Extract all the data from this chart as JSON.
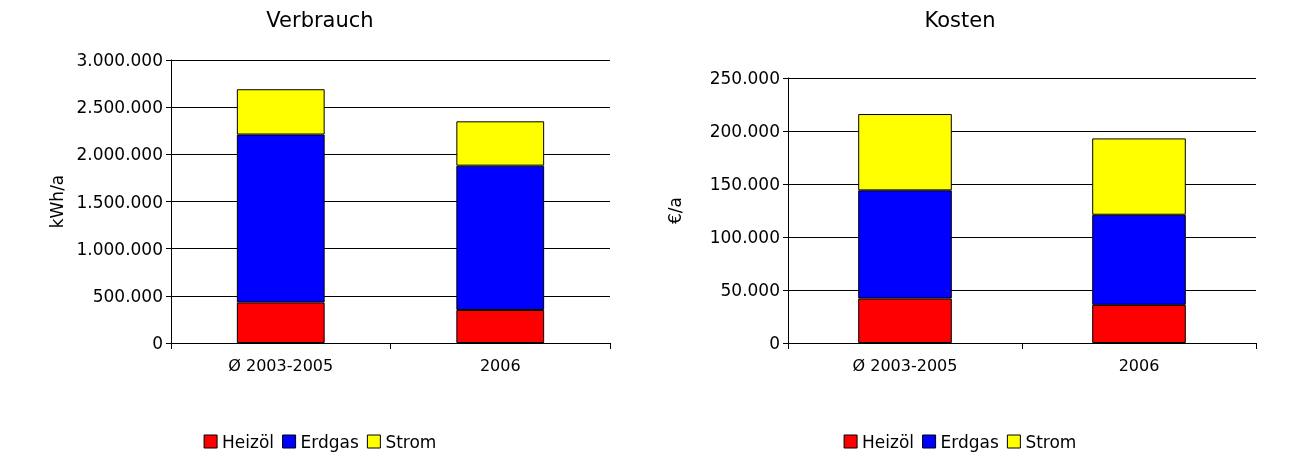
{
  "chart_data": [
    {
      "type": "bar",
      "title": "Verbrauch",
      "ylabel": "kWh/a",
      "categories": [
        "Ø 2003-2005",
        "2006"
      ],
      "stacked": true,
      "series": [
        {
          "name": "Heizöl",
          "color": "#ff0000",
          "values": [
            430000,
            350000
          ]
        },
        {
          "name": "Erdgas",
          "color": "#0000ff",
          "values": [
            1780000,
            1530000
          ]
        },
        {
          "name": "Strom",
          "color": "#ffff00",
          "values": [
            480000,
            470000
          ]
        }
      ],
      "ylim": [
        0,
        3000000
      ],
      "yticks": [
        {
          "value": 0,
          "label": "0"
        },
        {
          "value": 500000,
          "label": "500.000"
        },
        {
          "value": 1000000,
          "label": "1.000.000"
        },
        {
          "value": 1500000,
          "label": "1.500.000"
        },
        {
          "value": 2000000,
          "label": "2.000.000"
        },
        {
          "value": 2500000,
          "label": "2.500.000"
        },
        {
          "value": 3000000,
          "label": "3.000.000"
        }
      ],
      "grid": "y",
      "legend": "bottom"
    },
    {
      "type": "bar",
      "title": "Kosten",
      "ylabel": "€/a",
      "categories": [
        "Ø 2003-2005",
        "2006"
      ],
      "stacked": true,
      "series": [
        {
          "name": "Heizöl",
          "color": "#ff0000",
          "values": [
            42000,
            36000
          ]
        },
        {
          "name": "Erdgas",
          "color": "#0000ff",
          "values": [
            102000,
            85000
          ]
        },
        {
          "name": "Strom",
          "color": "#ffff00",
          "values": [
            72000,
            72000
          ]
        }
      ],
      "ylim": [
        0,
        250000
      ],
      "yticks": [
        {
          "value": 0,
          "label": "0"
        },
        {
          "value": 50000,
          "label": "50.000"
        },
        {
          "value": 100000,
          "label": "100.000"
        },
        {
          "value": 150000,
          "label": "150.000"
        },
        {
          "value": 200000,
          "label": "200.000"
        },
        {
          "value": 250000,
          "label": "250.000"
        }
      ],
      "grid": "y",
      "legend": "bottom"
    }
  ]
}
